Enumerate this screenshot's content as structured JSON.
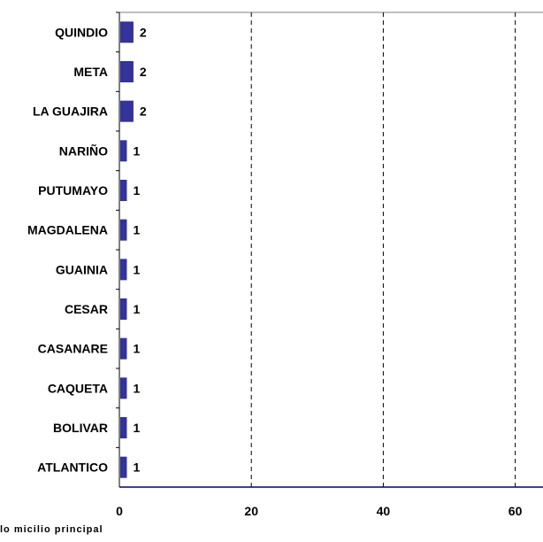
{
  "chart_data": {
    "type": "bar",
    "orientation": "horizontal",
    "categories": [
      "QUINDIO",
      "META",
      "LA GUAJIRA",
      "NARIÑO",
      "PUTUMAYO",
      "MAGDALENA",
      "GUAINIA",
      "CESAR",
      "CASANARE",
      "CAQUETA",
      "BOLIVAR",
      "ATLANTICO"
    ],
    "values": [
      2,
      2,
      2,
      1,
      1,
      1,
      1,
      1,
      1,
      1,
      1,
      1
    ],
    "x_ticks": [
      "0",
      "20",
      "40",
      "60"
    ],
    "xlim": [
      0,
      64
    ],
    "grid": "vertical-dashed",
    "bar_color": "#333399",
    "axis_color": "#000080"
  },
  "footer_text": "lo micilio  principal"
}
